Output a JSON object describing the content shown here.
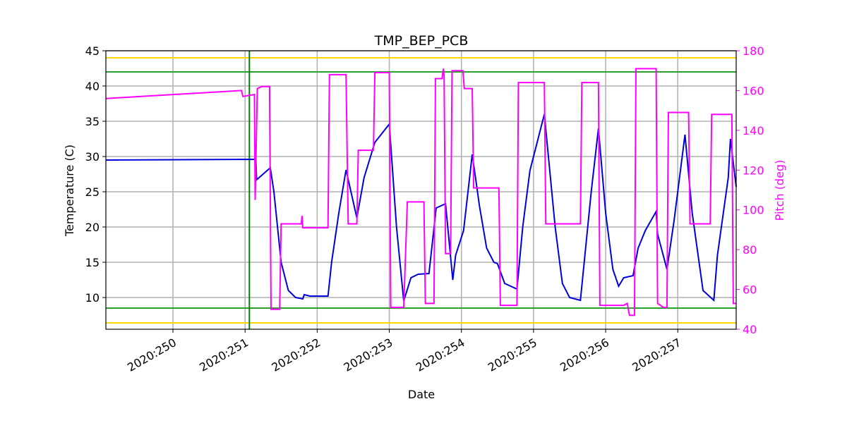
{
  "chart_data": {
    "type": "line",
    "title": "TMP_BEP_PCB",
    "xlabel": "Date",
    "ylabel": "Temperature (C)",
    "y2label": "Pitch (deg)",
    "xlim": [
      249.07,
      257.81
    ],
    "ylim": [
      5.5,
      45
    ],
    "y2lim": [
      40,
      180
    ],
    "xticks": [
      {
        "value": 250,
        "label": "2020:250"
      },
      {
        "value": 251,
        "label": "2020:251"
      },
      {
        "value": 252,
        "label": "2020:252"
      },
      {
        "value": 253,
        "label": "2020:253"
      },
      {
        "value": 254,
        "label": "2020:254"
      },
      {
        "value": 255,
        "label": "2020:255"
      },
      {
        "value": 256,
        "label": "2020:256"
      },
      {
        "value": 257,
        "label": "2020:257"
      }
    ],
    "yticks": [
      10,
      15,
      20,
      25,
      30,
      35,
      40,
      45
    ],
    "y2ticks": [
      40,
      60,
      80,
      100,
      120,
      140,
      160,
      180
    ],
    "grid": true,
    "y2color": "#ff00ff",
    "hlines": [
      {
        "value": 44,
        "color": "#ffd700"
      },
      {
        "value": 6.4,
        "color": "#ffd700"
      },
      {
        "value": 42,
        "color": "#2ca02c"
      },
      {
        "value": 8.5,
        "color": "#2ca02c"
      }
    ],
    "vlines": [
      {
        "value": 251.06,
        "color": "#008000"
      }
    ],
    "series": [
      {
        "color": "#0000dd",
        "axis": "y",
        "x": [
          249.07,
          251.15,
          251.16,
          251.35,
          251.4,
          251.5,
          251.6,
          251.7,
          251.8,
          251.82,
          251.9,
          252.15,
          252.2,
          252.3,
          252.4,
          252.55,
          252.65,
          252.8,
          253.0,
          253.1,
          253.2,
          253.3,
          253.4,
          253.55,
          253.65,
          253.78,
          253.88,
          253.92,
          254.03,
          254.15,
          254.25,
          254.35,
          254.45,
          254.5,
          254.6,
          254.77,
          254.85,
          254.95,
          255.15,
          255.3,
          255.4,
          255.5,
          255.65,
          255.8,
          255.9,
          256.0,
          256.1,
          256.18,
          256.25,
          256.38,
          256.45,
          256.55,
          256.7,
          256.72,
          256.85,
          256.95,
          257.1,
          257.2,
          257.35,
          257.5,
          257.55,
          257.7,
          257.73,
          257.81
        ],
        "values": [
          29.5,
          29.6,
          26.7,
          28.4,
          25,
          15,
          11,
          10,
          9.8,
          10.4,
          10.2,
          10.2,
          15,
          22,
          28.1,
          21.3,
          27,
          32,
          34.6,
          20,
          9.5,
          12.8,
          13.3,
          13.4,
          22.7,
          23.3,
          12.5,
          16,
          19.5,
          30.3,
          23,
          17,
          15,
          14.8,
          12,
          11.2,
          20,
          28,
          36,
          20,
          12,
          10,
          9.6,
          25,
          34,
          22,
          14,
          11.6,
          12.8,
          13.1,
          17,
          19.5,
          22.2,
          19,
          14,
          21,
          33.1,
          22,
          11,
          9.6,
          16,
          27,
          32.5,
          25.7
        ]
      },
      {
        "color": "#ff00ff",
        "axis": "y2",
        "x": [
          249.07,
          250.95,
          250.97,
          251.13,
          251.14,
          251.17,
          251.23,
          251.34,
          251.36,
          251.48,
          251.5,
          251.78,
          251.79,
          251.8,
          252.15,
          252.17,
          252.4,
          252.43,
          252.55,
          252.57,
          252.78,
          252.8,
          253.0,
          253.02,
          253.2,
          253.25,
          253.48,
          253.5,
          253.62,
          253.64,
          253.73,
          253.75,
          253.76,
          253.78,
          253.85,
          253.87,
          254.02,
          254.04,
          254.15,
          254.17,
          254.52,
          254.54,
          254.77,
          254.79,
          255.15,
          255.17,
          255.65,
          255.67,
          255.9,
          255.92,
          256.25,
          256.3,
          256.33,
          256.4,
          256.42,
          256.7,
          256.72,
          256.8,
          256.85,
          256.87,
          257.15,
          257.17,
          257.45,
          257.47,
          257.75,
          257.77,
          257.81
        ],
        "values": [
          156,
          160,
          157,
          158,
          105,
          161,
          162,
          162,
          50,
          50,
          93,
          93,
          97,
          91,
          91,
          168,
          168,
          93,
          93,
          130,
          130,
          169,
          169,
          51,
          51,
          104,
          104,
          53,
          53,
          166,
          166,
          171,
          167,
          78,
          78,
          170,
          170,
          161,
          161,
          111,
          111,
          52,
          52,
          164,
          164,
          93,
          93,
          164,
          164,
          52,
          52,
          53,
          47,
          47,
          171,
          171,
          53,
          51,
          51,
          149,
          149,
          93,
          93,
          148,
          148,
          53,
          53
        ]
      }
    ]
  }
}
